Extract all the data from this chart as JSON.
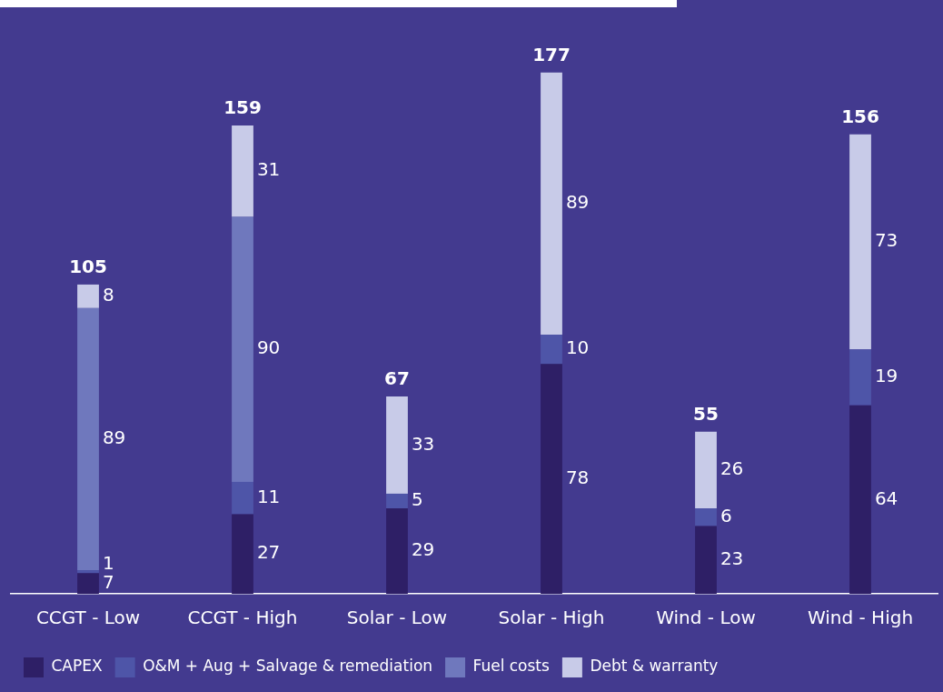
{
  "chart_data": {
    "type": "bar",
    "stacked": true,
    "data_labels": true,
    "legend": "bottom",
    "grid": false,
    "categories": [
      "CCGT - Low",
      "CCGT - High",
      "Solar - Low",
      "Solar - High",
      "Wind - Low",
      "Wind - High"
    ],
    "series": [
      {
        "name": "CAPEX",
        "color": "#2e1f66",
        "values": [
          7,
          27,
          29,
          78,
          23,
          64
        ]
      },
      {
        "name": "O&M + Aug + Salvage & remediation",
        "color": "#4e55a8",
        "values": [
          1,
          11,
          5,
          10,
          6,
          19
        ]
      },
      {
        "name": "Fuel costs",
        "color": "#6f78bd",
        "values": [
          89,
          90,
          null,
          null,
          null,
          null
        ]
      },
      {
        "name": "Debt & warranty",
        "color": "#c8cbe8",
        "values": [
          8,
          31,
          33,
          89,
          26,
          73
        ]
      }
    ],
    "totals": [
      "105",
      "159",
      "67",
      "177",
      "55",
      "156"
    ]
  }
}
